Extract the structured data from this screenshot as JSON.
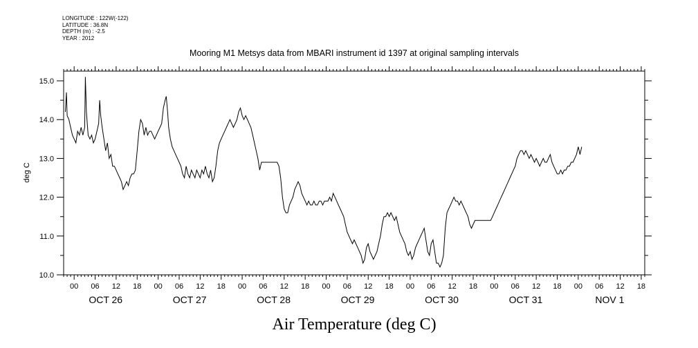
{
  "metadata": [
    "LONGITUDE : 122W(-122)",
    "LATITUDE : 36.8N",
    "DEPTH (m) : -2.5",
    "YEAR : 2012"
  ],
  "chart_data": {
    "type": "line",
    "title": "Mooring M1 Metsys data from MBARI instrument id 1397 at original sampling intervals",
    "xlabel": "Air Temperature (deg C)",
    "ylabel": "deg C",
    "ylim": [
      10.0,
      15.25
    ],
    "xlim_hours": [
      -3.0,
      163.0
    ],
    "x_units": "hours since 2012-10-26 00:00",
    "y_ticks": [
      "10.0",
      "11.0",
      "12.0",
      "13.0",
      "14.0",
      "15.0"
    ],
    "hour_ticks": [
      "00",
      "06",
      "12",
      "18"
    ],
    "day_labels": [
      {
        "label": "OCT 26",
        "hour": 9
      },
      {
        "label": "OCT 27",
        "hour": 33
      },
      {
        "label": "OCT 28",
        "hour": 57
      },
      {
        "label": "OCT 29",
        "hour": 81
      },
      {
        "label": "OCT 30",
        "hour": 105
      },
      {
        "label": "OCT 31",
        "hour": 129
      },
      {
        "label": "NOV  1",
        "hour": 153
      }
    ],
    "series": [
      {
        "color": "#000000",
        "points": [
          [
            -2.5,
            14.2
          ],
          [
            -2.2,
            14.7
          ],
          [
            -2.0,
            14.1
          ],
          [
            -1.5,
            14.0
          ],
          [
            -1.0,
            13.8
          ],
          [
            -0.5,
            13.6
          ],
          [
            0,
            13.5
          ],
          [
            0.5,
            13.4
          ],
          [
            1,
            13.7
          ],
          [
            1.5,
            13.6
          ],
          [
            2,
            13.8
          ],
          [
            2.5,
            13.6
          ],
          [
            3,
            13.8
          ],
          [
            3.2,
            15.1
          ],
          [
            3.5,
            14.2
          ],
          [
            4,
            13.6
          ],
          [
            4.5,
            13.5
          ],
          [
            5,
            13.6
          ],
          [
            5.5,
            13.4
          ],
          [
            6,
            13.5
          ],
          [
            6.5,
            13.7
          ],
          [
            7,
            13.9
          ],
          [
            7.3,
            14.5
          ],
          [
            7.6,
            14.1
          ],
          [
            8,
            13.8
          ],
          [
            8.5,
            13.5
          ],
          [
            9,
            13.2
          ],
          [
            9.5,
            13.4
          ],
          [
            10,
            13.0
          ],
          [
            10.5,
            13.1
          ],
          [
            11,
            12.8
          ],
          [
            11.5,
            12.8
          ],
          [
            12,
            12.7
          ],
          [
            12.5,
            12.6
          ],
          [
            13,
            12.5
          ],
          [
            13.5,
            12.4
          ],
          [
            14,
            12.2
          ],
          [
            14.5,
            12.3
          ],
          [
            15,
            12.4
          ],
          [
            15.5,
            12.3
          ],
          [
            16,
            12.5
          ],
          [
            16.5,
            12.6
          ],
          [
            17,
            12.6
          ],
          [
            17.5,
            12.7
          ],
          [
            18,
            13.2
          ],
          [
            18.5,
            13.7
          ],
          [
            19,
            14.0
          ],
          [
            19.5,
            13.9
          ],
          [
            20,
            13.6
          ],
          [
            20.5,
            13.8
          ],
          [
            21,
            13.6
          ],
          [
            21.5,
            13.7
          ],
          [
            22,
            13.7
          ],
          [
            22.5,
            13.6
          ],
          [
            23,
            13.5
          ],
          [
            23.5,
            13.6
          ],
          [
            24,
            13.7
          ],
          [
            24.5,
            13.8
          ],
          [
            25,
            13.9
          ],
          [
            25.5,
            14.3
          ],
          [
            26,
            14.5
          ],
          [
            26.3,
            14.6
          ],
          [
            26.7,
            14.2
          ],
          [
            27,
            13.8
          ],
          [
            27.5,
            13.5
          ],
          [
            28,
            13.3
          ],
          [
            28.5,
            13.2
          ],
          [
            29,
            13.1
          ],
          [
            29.5,
            13.0
          ],
          [
            30,
            12.9
          ],
          [
            30.5,
            12.8
          ],
          [
            31,
            12.6
          ],
          [
            31.5,
            12.5
          ],
          [
            32,
            12.8
          ],
          [
            32.5,
            12.6
          ],
          [
            33,
            12.5
          ],
          [
            33.5,
            12.7
          ],
          [
            34,
            12.6
          ],
          [
            34.5,
            12.5
          ],
          [
            35,
            12.7
          ],
          [
            35.5,
            12.6
          ],
          [
            36,
            12.5
          ],
          [
            36.5,
            12.7
          ],
          [
            37,
            12.6
          ],
          [
            37.5,
            12.8
          ],
          [
            38,
            12.6
          ],
          [
            38.5,
            12.5
          ],
          [
            39,
            12.7
          ],
          [
            39.5,
            12.4
          ],
          [
            40,
            12.5
          ],
          [
            40.5,
            12.8
          ],
          [
            41,
            13.2
          ],
          [
            41.5,
            13.4
          ],
          [
            42,
            13.5
          ],
          [
            42.5,
            13.6
          ],
          [
            43,
            13.7
          ],
          [
            43.5,
            13.8
          ],
          [
            44,
            13.9
          ],
          [
            44.5,
            14.0
          ],
          [
            45,
            13.9
          ],
          [
            45.5,
            13.8
          ],
          [
            46,
            13.9
          ],
          [
            46.5,
            14.0
          ],
          [
            47,
            14.2
          ],
          [
            47.5,
            14.3
          ],
          [
            48,
            14.1
          ],
          [
            48.5,
            14.0
          ],
          [
            49,
            14.1
          ],
          [
            49.5,
            14.0
          ],
          [
            50,
            13.9
          ],
          [
            50.5,
            13.8
          ],
          [
            51,
            13.6
          ],
          [
            51.5,
            13.4
          ],
          [
            52,
            13.2
          ],
          [
            52.5,
            13.0
          ],
          [
            53,
            12.7
          ],
          [
            53.5,
            12.9
          ],
          [
            54,
            12.9
          ],
          [
            55,
            12.9
          ],
          [
            56,
            12.9
          ],
          [
            57,
            12.9
          ],
          [
            58,
            12.9
          ],
          [
            58.5,
            12.8
          ],
          [
            59,
            12.5
          ],
          [
            59.5,
            12.0
          ],
          [
            60,
            11.7
          ],
          [
            60.5,
            11.6
          ],
          [
            61,
            11.6
          ],
          [
            61.5,
            11.8
          ],
          [
            62,
            11.9
          ],
          [
            62.5,
            12.0
          ],
          [
            63,
            12.2
          ],
          [
            63.5,
            12.3
          ],
          [
            64,
            12.4
          ],
          [
            64.5,
            12.3
          ],
          [
            65,
            12.1
          ],
          [
            65.5,
            12.0
          ],
          [
            66,
            11.9
          ],
          [
            66.5,
            11.8
          ],
          [
            67,
            11.9
          ],
          [
            67.5,
            11.8
          ],
          [
            68,
            11.8
          ],
          [
            68.5,
            11.9
          ],
          [
            69,
            11.8
          ],
          [
            69.5,
            11.8
          ],
          [
            70,
            11.9
          ],
          [
            70.5,
            11.9
          ],
          [
            71,
            11.8
          ],
          [
            71.5,
            11.9
          ],
          [
            72,
            11.9
          ],
          [
            72.5,
            11.9
          ],
          [
            73,
            12.0
          ],
          [
            73.5,
            11.9
          ],
          [
            74,
            12.1
          ],
          [
            74.5,
            12.0
          ],
          [
            75,
            11.9
          ],
          [
            75.5,
            11.8
          ],
          [
            76,
            11.7
          ],
          [
            76.5,
            11.6
          ],
          [
            77,
            11.5
          ],
          [
            77.5,
            11.3
          ],
          [
            78,
            11.1
          ],
          [
            78.5,
            11.0
          ],
          [
            79,
            10.9
          ],
          [
            79.5,
            10.8
          ],
          [
            80,
            10.9
          ],
          [
            80.5,
            10.8
          ],
          [
            81,
            10.7
          ],
          [
            81.5,
            10.6
          ],
          [
            82,
            10.5
          ],
          [
            82.5,
            10.3
          ],
          [
            83,
            10.4
          ],
          [
            83.5,
            10.7
          ],
          [
            84,
            10.8
          ],
          [
            84.5,
            10.6
          ],
          [
            85,
            10.5
          ],
          [
            85.5,
            10.4
          ],
          [
            86,
            10.5
          ],
          [
            86.5,
            10.6
          ],
          [
            87,
            10.8
          ],
          [
            87.5,
            11.0
          ],
          [
            88,
            11.3
          ],
          [
            88.5,
            11.5
          ],
          [
            89,
            11.5
          ],
          [
            89.5,
            11.6
          ],
          [
            90,
            11.5
          ],
          [
            90.5,
            11.6
          ],
          [
            91,
            11.5
          ],
          [
            91.5,
            11.4
          ],
          [
            92,
            11.5
          ],
          [
            92.5,
            11.3
          ],
          [
            93,
            11.1
          ],
          [
            93.5,
            11.0
          ],
          [
            94,
            10.9
          ],
          [
            94.5,
            10.8
          ],
          [
            95,
            10.6
          ],
          [
            95.5,
            10.5
          ],
          [
            96,
            10.6
          ],
          [
            96.5,
            10.4
          ],
          [
            97,
            10.5
          ],
          [
            97.5,
            10.7
          ],
          [
            98,
            10.8
          ],
          [
            98.5,
            10.9
          ],
          [
            99,
            11.0
          ],
          [
            99.5,
            11.1
          ],
          [
            100,
            11.2
          ],
          [
            100.5,
            10.9
          ],
          [
            101,
            10.6
          ],
          [
            101.5,
            10.5
          ],
          [
            102,
            10.8
          ],
          [
            102.5,
            10.9
          ],
          [
            103,
            10.6
          ],
          [
            103.5,
            10.3
          ],
          [
            104,
            10.3
          ],
          [
            104.5,
            10.2
          ],
          [
            105,
            10.3
          ],
          [
            105.5,
            10.5
          ],
          [
            106,
            11.2
          ],
          [
            106.5,
            11.6
          ],
          [
            107,
            11.7
          ],
          [
            107.5,
            11.8
          ],
          [
            108,
            11.9
          ],
          [
            108.5,
            12.0
          ],
          [
            109,
            11.9
          ],
          [
            109.5,
            11.9
          ],
          [
            110,
            11.8
          ],
          [
            110.5,
            11.9
          ],
          [
            111,
            11.8
          ],
          [
            111.5,
            11.7
          ],
          [
            112,
            11.6
          ],
          [
            112.5,
            11.5
          ],
          [
            113,
            11.3
          ],
          [
            113.5,
            11.2
          ],
          [
            114,
            11.3
          ],
          [
            114.5,
            11.4
          ],
          [
            115,
            11.4
          ],
          [
            116,
            11.4
          ],
          [
            117,
            11.4
          ],
          [
            118,
            11.4
          ],
          [
            119,
            11.4
          ],
          [
            119.5,
            11.5
          ],
          [
            120,
            11.6
          ],
          [
            120.5,
            11.7
          ],
          [
            121,
            11.8
          ],
          [
            121.5,
            11.9
          ],
          [
            122,
            12.0
          ],
          [
            122.5,
            12.1
          ],
          [
            123,
            12.2
          ],
          [
            123.5,
            12.3
          ],
          [
            124,
            12.4
          ],
          [
            124.5,
            12.5
          ],
          [
            125,
            12.6
          ],
          [
            125.5,
            12.7
          ],
          [
            126,
            12.8
          ],
          [
            126.5,
            13.0
          ],
          [
            127,
            13.1
          ],
          [
            127.5,
            13.2
          ],
          [
            128,
            13.2
          ],
          [
            128.5,
            13.1
          ],
          [
            129,
            13.2
          ],
          [
            129.5,
            13.1
          ],
          [
            130,
            13.0
          ],
          [
            130.5,
            13.1
          ],
          [
            131,
            13.0
          ],
          [
            131.5,
            12.9
          ],
          [
            132,
            13.0
          ],
          [
            132.5,
            12.9
          ],
          [
            133,
            12.8
          ],
          [
            133.5,
            12.9
          ],
          [
            134,
            13.0
          ],
          [
            134.5,
            12.9
          ],
          [
            135,
            12.9
          ],
          [
            135.5,
            13.0
          ],
          [
            136,
            13.1
          ],
          [
            136.5,
            12.9
          ],
          [
            137,
            12.8
          ],
          [
            137.5,
            12.7
          ],
          [
            138,
            12.6
          ],
          [
            138.5,
            12.6
          ],
          [
            139,
            12.7
          ],
          [
            139.5,
            12.6
          ],
          [
            140,
            12.7
          ],
          [
            140.5,
            12.7
          ],
          [
            141,
            12.8
          ],
          [
            141.5,
            12.8
          ],
          [
            142,
            12.9
          ],
          [
            142.5,
            12.9
          ],
          [
            143,
            13.0
          ],
          [
            143.5,
            13.1
          ],
          [
            144,
            13.3
          ],
          [
            144.5,
            13.1
          ],
          [
            145,
            13.3
          ]
        ]
      }
    ]
  }
}
